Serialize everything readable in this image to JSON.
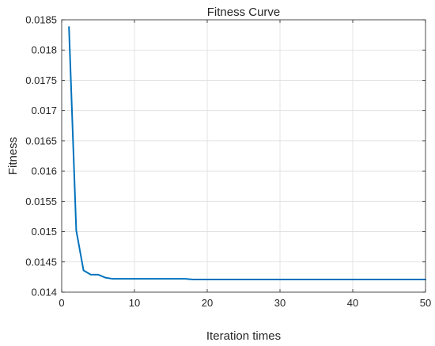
{
  "chart_data": {
    "type": "line",
    "title": "Fitness Curve",
    "xlabel": "Iteration times",
    "ylabel": "Fitness",
    "xlim": [
      0,
      50
    ],
    "ylim": [
      0.014,
      0.0185
    ],
    "grid": true,
    "legend": "none",
    "x_ticks": [
      0,
      10,
      20,
      30,
      40,
      50
    ],
    "x_tick_labels": [
      "0",
      "10",
      "20",
      "30",
      "40",
      "50"
    ],
    "y_ticks": [
      0.014,
      0.0145,
      0.015,
      0.0155,
      0.016,
      0.0165,
      0.017,
      0.0175,
      0.018,
      0.0185
    ],
    "y_tick_labels": [
      "0.014",
      "0.0145",
      "0.015",
      "0.0155",
      "0.016",
      "0.0165",
      "0.017",
      "0.0175",
      "0.018",
      "0.0185"
    ],
    "line_color": "#0072BD",
    "series": [
      {
        "x": [
          1,
          2,
          3,
          4,
          5,
          6,
          7,
          8,
          9,
          10,
          11,
          12,
          13,
          14,
          15,
          16,
          17,
          18,
          19,
          20,
          21,
          22,
          23,
          24,
          25,
          26,
          27,
          28,
          29,
          30,
          31,
          32,
          33,
          34,
          35,
          36,
          37,
          38,
          39,
          40,
          41,
          42,
          43,
          44,
          45,
          46,
          47,
          48,
          49,
          50
        ],
        "y": [
          0.01838,
          0.01502,
          0.01436,
          0.01429,
          0.01429,
          0.01424,
          0.01422,
          0.01422,
          0.01422,
          0.01422,
          0.01422,
          0.01422,
          0.01422,
          0.01422,
          0.01422,
          0.01422,
          0.01422,
          0.01421,
          0.01421,
          0.01421,
          0.01421,
          0.01421,
          0.01421,
          0.01421,
          0.01421,
          0.01421,
          0.01421,
          0.01421,
          0.01421,
          0.01421,
          0.01421,
          0.01421,
          0.01421,
          0.01421,
          0.01421,
          0.01421,
          0.01421,
          0.01421,
          0.01421,
          0.01421,
          0.01421,
          0.01421,
          0.01421,
          0.01421,
          0.01421,
          0.01421,
          0.01421,
          0.01421,
          0.01421,
          0.01421
        ]
      }
    ]
  }
}
